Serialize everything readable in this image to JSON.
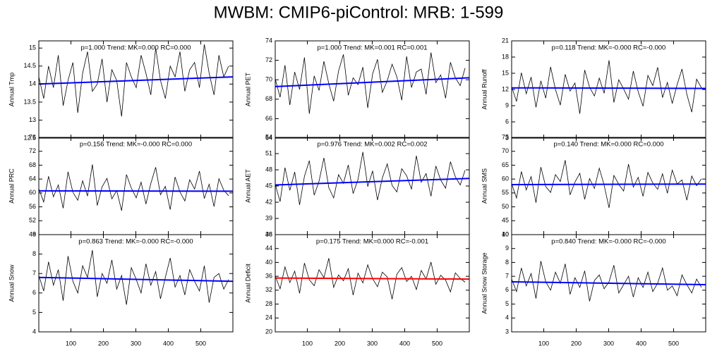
{
  "title": "MWBM: CMIP6-piControl: MRB: 1-599",
  "chart_data": [
    {
      "type": "line",
      "ylabel": "Annual Tmp",
      "annotation": "p=1.000 Trend: MK=0.000 RC=0.000",
      "x": [
        1,
        16,
        31,
        46,
        61,
        76,
        91,
        106,
        121,
        136,
        151,
        166,
        181,
        196,
        211,
        226,
        241,
        256,
        271,
        286,
        301,
        316,
        331,
        346,
        361,
        376,
        391,
        406,
        421,
        436,
        451,
        466,
        481,
        496,
        511,
        526,
        541,
        556,
        571,
        586
      ],
      "values": [
        14.2,
        13.6,
        14.5,
        13.9,
        14.8,
        13.4,
        14.1,
        14.6,
        13.2,
        14.3,
        14.9,
        13.8,
        14.0,
        14.7,
        13.5,
        14.4,
        14.1,
        13.1,
        14.6,
        14.2,
        13.9,
        14.8,
        14.3,
        13.7,
        15.0,
        14.1,
        13.6,
        14.5,
        14.2,
        14.9,
        13.8,
        14.4,
        14.6,
        13.9,
        15.1,
        14.3,
        13.7,
        14.8,
        14.2,
        14.5
      ],
      "color": "#000000",
      "trend": {
        "x": [
          1,
          599
        ],
        "values": [
          14.0,
          14.2
        ],
        "color": "#0000ff"
      },
      "xlim": [
        1,
        599
      ],
      "xticks": [
        100,
        200,
        300,
        400,
        500
      ],
      "ylim": [
        12.5,
        15.2
      ],
      "yticks": [
        12.5,
        13,
        13.5,
        14,
        14.5,
        15
      ]
    },
    {
      "type": "line",
      "ylabel": "Annual PET",
      "annotation": "p=1.000 Trend: MK=0.001 RC=0.001",
      "x": [
        1,
        16,
        31,
        46,
        61,
        76,
        91,
        106,
        121,
        136,
        151,
        166,
        181,
        196,
        211,
        226,
        241,
        256,
        271,
        286,
        301,
        316,
        331,
        346,
        361,
        376,
        391,
        406,
        421,
        436,
        451,
        466,
        481,
        496,
        511,
        526,
        541,
        556,
        571,
        586
      ],
      "values": [
        70.1,
        68.2,
        71.5,
        67.4,
        70.8,
        69.0,
        72.3,
        66.5,
        70.4,
        68.9,
        71.9,
        69.6,
        67.8,
        70.9,
        72.6,
        68.4,
        70.2,
        69.5,
        71.3,
        67.1,
        70.6,
        72.1,
        68.7,
        69.9,
        71.6,
        70.3,
        67.9,
        72.4,
        69.2,
        70.8,
        71.1,
        68.5,
        72.8,
        69.7,
        70.5,
        68.1,
        71.8,
        70.2,
        69.4,
        71.2
      ],
      "color": "#000000",
      "trend": {
        "x": [
          1,
          599
        ],
        "values": [
          69.3,
          70.2
        ],
        "color": "#0000ff"
      },
      "xlim": [
        1,
        599
      ],
      "xticks": [
        100,
        200,
        300,
        400,
        500
      ],
      "ylim": [
        64,
        74
      ],
      "yticks": [
        64,
        66,
        68,
        70,
        72,
        74
      ]
    },
    {
      "type": "line",
      "ylabel": "Annual Runoff",
      "annotation": "p=0.118 Trend: MK=-0.000 RC=-0.000",
      "x": [
        1,
        16,
        31,
        46,
        61,
        76,
        91,
        106,
        121,
        136,
        151,
        166,
        181,
        196,
        211,
        226,
        241,
        256,
        271,
        286,
        301,
        316,
        331,
        346,
        361,
        376,
        391,
        406,
        421,
        436,
        451,
        466,
        481,
        496,
        511,
        526,
        541,
        556,
        571,
        586
      ],
      "values": [
        12.5,
        9.8,
        15.1,
        11.2,
        14.3,
        8.7,
        13.6,
        10.4,
        16.2,
        12.0,
        9.1,
        14.8,
        11.7,
        13.2,
        7.5,
        15.6,
        12.4,
        10.8,
        14.1,
        11.3,
        17.4,
        9.6,
        13.8,
        12.1,
        10.2,
        15.4,
        11.6,
        8.9,
        14.6,
        12.7,
        16.1,
        10.5,
        13.3,
        9.4,
        12.9,
        15.8,
        11.1,
        7.8,
        13.9,
        12.3
      ],
      "color": "#000000",
      "trend": {
        "x": [
          1,
          599
        ],
        "values": [
          12.3,
          12.2
        ],
        "color": "#0000ff"
      },
      "xlim": [
        1,
        599
      ],
      "xticks": [
        100,
        200,
        300,
        400,
        500
      ],
      "ylim": [
        3,
        21
      ],
      "yticks": [
        3,
        6,
        9,
        12,
        15,
        18,
        21
      ]
    },
    {
      "type": "line",
      "ylabel": "Annual PRC",
      "annotation": "p=0.156 Trend: MK=-0.000 RC=0.000",
      "x": [
        1,
        16,
        31,
        46,
        61,
        76,
        91,
        106,
        121,
        136,
        151,
        166,
        181,
        196,
        211,
        226,
        241,
        256,
        271,
        286,
        301,
        316,
        331,
        346,
        361,
        376,
        391,
        406,
        421,
        436,
        451,
        466,
        481,
        496,
        511,
        526,
        541,
        556,
        571,
        586
      ],
      "values": [
        61.2,
        57.4,
        64.8,
        58.9,
        62.3,
        55.6,
        66.1,
        60.2,
        57.9,
        63.5,
        59.1,
        68.2,
        56.4,
        61.8,
        64.2,
        58.3,
        60.7,
        54.9,
        65.3,
        61.4,
        58.6,
        63.1,
        56.8,
        62.7,
        67.4,
        59.5,
        61.9,
        55.2,
        64.6,
        60.3,
        57.7,
        63.8,
        61.1,
        66.3,
        58.4,
        62.5,
        56.1,
        64.1,
        60.8,
        59.2
      ],
      "color": "#000000",
      "trend": {
        "x": [
          1,
          599
        ],
        "values": [
          60.6,
          60.5
        ],
        "color": "#0000ff"
      },
      "xlim": [
        1,
        599
      ],
      "xticks": [
        100,
        200,
        300,
        400,
        500
      ],
      "ylim": [
        48,
        76
      ],
      "yticks": [
        48,
        52,
        56,
        60,
        64,
        68,
        72,
        76
      ]
    },
    {
      "type": "line",
      "ylabel": "Annual AET",
      "annotation": "p=0.976 Trend: MK=0.002 RC=0.002",
      "x": [
        1,
        16,
        31,
        46,
        61,
        76,
        91,
        106,
        121,
        136,
        151,
        166,
        181,
        196,
        211,
        226,
        241,
        256,
        271,
        286,
        301,
        316,
        331,
        346,
        361,
        376,
        391,
        406,
        421,
        436,
        451,
        466,
        481,
        496,
        511,
        526,
        541,
        556,
        571,
        586
      ],
      "values": [
        45.3,
        42.1,
        48.4,
        44.2,
        47.6,
        41.5,
        46.8,
        49.7,
        43.3,
        45.9,
        50.2,
        44.7,
        42.8,
        47.1,
        45.5,
        48.9,
        43.6,
        46.2,
        51.3,
        44.9,
        47.8,
        42.4,
        46.5,
        49.1,
        45.1,
        43.9,
        48.2,
        46.9,
        44.4,
        50.6,
        45.7,
        47.3,
        43.1,
        48.7,
        46.1,
        44.6,
        49.5,
        46.7,
        45.2,
        47.9
      ],
      "color": "#000000",
      "trend": {
        "x": [
          1,
          599
        ],
        "values": [
          45.2,
          46.4
        ],
        "color": "#0000ff"
      },
      "xlim": [
        1,
        599
      ],
      "xticks": [
        100,
        200,
        300,
        400,
        500
      ],
      "ylim": [
        36,
        54
      ],
      "yticks": [
        36,
        39,
        42,
        45,
        48,
        51,
        54
      ]
    },
    {
      "type": "line",
      "ylabel": "Annual SMS",
      "annotation": "p=0.140 Trend: MK=0.000 RC=0.000",
      "x": [
        1,
        16,
        31,
        46,
        61,
        76,
        91,
        106,
        121,
        136,
        151,
        166,
        181,
        196,
        211,
        226,
        241,
        256,
        271,
        286,
        301,
        316,
        331,
        346,
        361,
        376,
        391,
        406,
        421,
        436,
        451,
        466,
        481,
        496,
        511,
        526,
        541,
        556,
        571,
        586
      ],
      "values": [
        58.4,
        53.2,
        62.7,
        56.1,
        60.9,
        51.5,
        64.3,
        57.3,
        55.2,
        61.6,
        59.1,
        66.8,
        54.3,
        58.9,
        62.1,
        52.7,
        60.2,
        56.6,
        63.9,
        57.8,
        49.6,
        61.3,
        58.1,
        55.7,
        65.4,
        57.1,
        60.6,
        53.8,
        62.4,
        58.6,
        56.3,
        61.9,
        54.9,
        63.2,
        58.2,
        59.7,
        52.4,
        61.1,
        57.6,
        60.1
      ],
      "color": "#000000",
      "trend": {
        "x": [
          1,
          599
        ],
        "values": [
          58.0,
          58.2
        ],
        "color": "#0000ff"
      },
      "xlim": [
        1,
        599
      ],
      "xticks": [
        100,
        200,
        300,
        400,
        500
      ],
      "ylim": [
        40,
        75
      ],
      "yticks": [
        40,
        45,
        50,
        55,
        60,
        65,
        70,
        75
      ]
    },
    {
      "type": "line",
      "ylabel": "Annual Snow",
      "annotation": "p=0.863 Trend: MK=-0.000 RC=-0.000",
      "x": [
        1,
        16,
        31,
        46,
        61,
        76,
        91,
        106,
        121,
        136,
        151,
        166,
        181,
        196,
        211,
        226,
        241,
        256,
        271,
        286,
        301,
        316,
        331,
        346,
        361,
        376,
        391,
        406,
        421,
        436,
        451,
        466,
        481,
        496,
        511,
        526,
        541,
        556,
        571,
        586
      ],
      "values": [
        6.9,
        6.1,
        7.6,
        6.4,
        7.2,
        5.6,
        7.9,
        6.6,
        6.0,
        7.4,
        6.8,
        8.2,
        5.8,
        7.0,
        6.5,
        7.7,
        6.2,
        6.9,
        5.4,
        7.3,
        6.7,
        6.0,
        7.5,
        6.4,
        7.1,
        5.7,
        6.8,
        7.8,
        6.3,
        6.9,
        5.9,
        7.2,
        6.6,
        6.1,
        7.4,
        5.5,
        6.8,
        7.0,
        6.2,
        6.7
      ],
      "color": "#000000",
      "trend": {
        "x": [
          1,
          599
        ],
        "values": [
          6.8,
          6.6
        ],
        "color": "#0000ff"
      },
      "xlim": [
        1,
        599
      ],
      "xticks": [
        100,
        200,
        300,
        400,
        500
      ],
      "ylim": [
        4,
        9
      ],
      "yticks": [
        4,
        5,
        6,
        7,
        8,
        9
      ]
    },
    {
      "type": "line",
      "ylabel": "Annual Deficit",
      "annotation": "p=0.175 Trend: MK=0.000 RC=-0.001",
      "x": [
        1,
        16,
        31,
        46,
        61,
        76,
        91,
        106,
        121,
        136,
        151,
        166,
        181,
        196,
        211,
        226,
        241,
        256,
        271,
        286,
        301,
        316,
        331,
        346,
        361,
        376,
        391,
        406,
        421,
        436,
        451,
        466,
        481,
        496,
        511,
        526,
        541,
        556,
        571,
        586
      ],
      "values": [
        36.1,
        32.4,
        38.7,
        34.2,
        37.5,
        31.1,
        39.8,
        35.0,
        33.3,
        37.9,
        35.6,
        41.2,
        32.8,
        36.4,
        34.7,
        38.2,
        30.6,
        36.9,
        34.1,
        39.3,
        35.3,
        33.0,
        37.2,
        35.8,
        29.4,
        36.6,
        38.5,
        34.5,
        36.0,
        32.2,
        37.7,
        35.2,
        40.1,
        33.7,
        36.3,
        34.9,
        31.5,
        37.0,
        35.4,
        34.3
      ],
      "color": "#000000",
      "trend": {
        "x": [
          1,
          599
        ],
        "values": [
          35.5,
          35.2
        ],
        "color": "#ff0000"
      },
      "xlim": [
        1,
        599
      ],
      "xticks": [
        100,
        200,
        300,
        400,
        500
      ],
      "ylim": [
        20,
        48
      ],
      "yticks": [
        20,
        24,
        28,
        32,
        36,
        40,
        44,
        48
      ]
    },
    {
      "type": "line",
      "ylabel": "Annual Snow Storage",
      "annotation": "p=0.840 Trend: MK=-0.000 RC=-0.000",
      "x": [
        1,
        16,
        31,
        46,
        61,
        76,
        91,
        106,
        121,
        136,
        151,
        166,
        181,
        196,
        211,
        226,
        241,
        256,
        271,
        286,
        301,
        316,
        331,
        346,
        361,
        376,
        391,
        406,
        421,
        436,
        451,
        466,
        481,
        496,
        511,
        526,
        541,
        556,
        571,
        586
      ],
      "values": [
        6.8,
        5.9,
        7.6,
        6.3,
        7.2,
        5.4,
        8.1,
        6.6,
        6.0,
        7.3,
        6.5,
        7.9,
        5.7,
        6.9,
        6.2,
        7.4,
        5.2,
        6.7,
        7.1,
        6.1,
        6.6,
        7.8,
        5.8,
        6.4,
        7.0,
        5.5,
        6.9,
        6.2,
        7.3,
        5.9,
        6.5,
        7.6,
        6.0,
        6.3,
        5.6,
        7.1,
        6.4,
        5.8,
        6.8,
        6.2
      ],
      "color": "#000000",
      "trend": {
        "x": [
          1,
          599
        ],
        "values": [
          6.6,
          6.4
        ],
        "color": "#0000ff"
      },
      "xlim": [
        1,
        599
      ],
      "xticks": [
        100,
        200,
        300,
        400,
        500
      ],
      "ylim": [
        3,
        10
      ],
      "yticks": [
        3,
        4,
        5,
        6,
        7,
        8,
        9,
        10
      ]
    }
  ]
}
